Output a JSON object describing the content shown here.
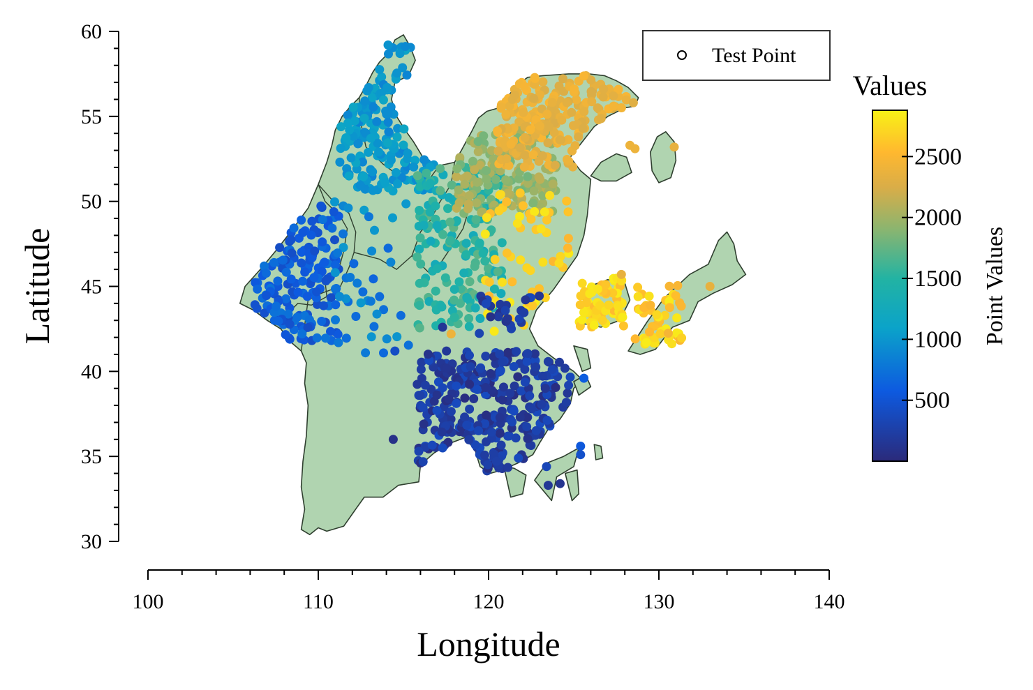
{
  "chart_data": {
    "type": "scatter",
    "xlabel": "Longitude",
    "ylabel": "Latitude",
    "xlim": [
      100,
      140
    ],
    "ylim": [
      30,
      60
    ],
    "xticks": [
      "100",
      "110",
      "120",
      "130",
      "140"
    ],
    "yticks": [
      "30",
      "35",
      "40",
      "45",
      "50",
      "55",
      "60"
    ],
    "grid": false,
    "legend": {
      "position": "top-right",
      "entries": [
        "Test Point"
      ]
    },
    "colorbar": {
      "title": "Values",
      "label": "Point Values",
      "range": [
        0,
        2880
      ],
      "ticks": [
        "500",
        "1000",
        "1500",
        "2000",
        "2500"
      ]
    },
    "map": {
      "land_color": "#b0d4b0",
      "outline_color": "#2f3f2f",
      "mainland": [
        [
          115.0,
          59.8
        ],
        [
          114.5,
          59.5
        ],
        [
          114.2,
          58.8
        ],
        [
          113.6,
          58.2
        ],
        [
          113.2,
          57.6
        ],
        [
          112.8,
          56.8
        ],
        [
          112.4,
          56.1
        ],
        [
          111.9,
          55.6
        ],
        [
          111.4,
          55.0
        ],
        [
          111.0,
          54.2
        ],
        [
          110.8,
          53.3
        ],
        [
          110.5,
          52.3
        ],
        [
          110.0,
          51.0
        ],
        [
          109.4,
          49.6
        ],
        [
          108.6,
          48.5
        ],
        [
          107.6,
          47.2
        ],
        [
          106.6,
          46.0
        ],
        [
          105.7,
          45.0
        ],
        [
          105.4,
          44.0
        ],
        [
          106.2,
          43.6
        ],
        [
          107.0,
          43.0
        ],
        [
          107.8,
          42.5
        ],
        [
          108.3,
          41.8
        ],
        [
          109.0,
          41.2
        ],
        [
          109.3,
          40.5
        ],
        [
          109.2,
          39.3
        ],
        [
          109.4,
          38.0
        ],
        [
          109.3,
          36.2
        ],
        [
          109.1,
          34.7
        ],
        [
          109.0,
          33.2
        ],
        [
          109.2,
          31.9
        ],
        [
          109.0,
          30.7
        ],
        [
          109.5,
          30.4
        ],
        [
          110.0,
          30.8
        ],
        [
          110.5,
          30.6
        ],
        [
          111.5,
          30.9
        ],
        [
          112.2,
          31.9
        ],
        [
          112.7,
          32.6
        ],
        [
          113.8,
          32.6
        ],
        [
          114.7,
          33.3
        ],
        [
          115.9,
          33.5
        ],
        [
          116.0,
          34.5
        ],
        [
          116.8,
          35.2
        ],
        [
          117.8,
          35.8
        ],
        [
          118.6,
          36.1
        ],
        [
          119.2,
          35.4
        ],
        [
          119.5,
          34.4
        ],
        [
          120.1,
          34.0
        ],
        [
          120.8,
          34.2
        ],
        [
          121.7,
          34.6
        ],
        [
          122.6,
          35.1
        ],
        [
          123.0,
          35.8
        ],
        [
          123.5,
          36.6
        ],
        [
          124.2,
          37.2
        ],
        [
          124.8,
          38.1
        ],
        [
          125.0,
          39.0
        ],
        [
          125.5,
          39.5
        ],
        [
          125.0,
          40.0
        ],
        [
          123.8,
          40.8
        ],
        [
          122.9,
          41.5
        ],
        [
          122.4,
          42.5
        ],
        [
          122.8,
          43.6
        ],
        [
          123.8,
          44.8
        ],
        [
          124.5,
          45.8
        ],
        [
          125.2,
          46.8
        ],
        [
          125.6,
          48.0
        ],
        [
          125.8,
          49.2
        ],
        [
          125.9,
          50.3
        ],
        [
          126.0,
          51.3
        ],
        [
          125.4,
          51.8
        ],
        [
          124.8,
          52.6
        ],
        [
          125.5,
          53.5
        ],
        [
          126.2,
          54.4
        ],
        [
          127.0,
          55.0
        ],
        [
          128.0,
          55.5
        ],
        [
          128.6,
          55.6
        ],
        [
          128.8,
          56.1
        ],
        [
          128.2,
          56.7
        ],
        [
          127.5,
          57.1
        ],
        [
          126.8,
          57.4
        ],
        [
          125.9,
          57.5
        ],
        [
          124.7,
          57.5
        ],
        [
          123.2,
          57.4
        ],
        [
          122.3,
          57.3
        ],
        [
          121.6,
          56.8
        ],
        [
          121.1,
          56.1
        ],
        [
          120.6,
          55.5
        ],
        [
          119.9,
          55.3
        ],
        [
          119.4,
          54.9
        ],
        [
          119.0,
          54.1
        ],
        [
          118.4,
          53.0
        ],
        [
          118.0,
          52.3
        ],
        [
          117.1,
          52.1
        ],
        [
          116.2,
          52.5
        ],
        [
          115.9,
          53.0
        ],
        [
          115.6,
          53.5
        ],
        [
          115.1,
          54.2
        ],
        [
          114.6,
          55.0
        ],
        [
          114.3,
          56.0
        ],
        [
          114.5,
          57.0
        ],
        [
          115.3,
          57.4
        ],
        [
          115.7,
          58.3
        ],
        [
          115.4,
          59.1
        ],
        [
          115.0,
          59.8
        ]
      ],
      "islands": [
        [
          [
            126.0,
            51.5
          ],
          [
            126.6,
            52.3
          ],
          [
            127.5,
            52.8
          ],
          [
            128.1,
            52.6
          ],
          [
            128.4,
            51.7
          ],
          [
            127.5,
            51.2
          ],
          [
            126.6,
            51.2
          ],
          [
            126.0,
            51.5
          ]
        ],
        [
          [
            129.5,
            52.9
          ],
          [
            129.9,
            53.8
          ],
          [
            130.4,
            54.1
          ],
          [
            130.9,
            53.5
          ],
          [
            131.0,
            52.4
          ],
          [
            130.7,
            51.4
          ],
          [
            130.0,
            51.1
          ],
          [
            129.6,
            51.8
          ],
          [
            129.5,
            52.9
          ]
        ],
        [
          [
            125.4,
            43.8
          ],
          [
            125.9,
            45.0
          ],
          [
            127.0,
            45.4
          ],
          [
            128.0,
            45.2
          ],
          [
            128.3,
            44.2
          ],
          [
            127.7,
            43.0
          ],
          [
            126.6,
            42.6
          ],
          [
            125.6,
            42.8
          ],
          [
            125.4,
            43.8
          ]
        ],
        [
          [
            128.2,
            41.2
          ],
          [
            129.3,
            42.9
          ],
          [
            130.3,
            44.3
          ],
          [
            131.8,
            45.7
          ],
          [
            132.9,
            46.3
          ],
          [
            133.5,
            47.7
          ],
          [
            134.0,
            48.2
          ],
          [
            134.4,
            47.5
          ],
          [
            134.6,
            46.5
          ],
          [
            135.1,
            45.7
          ],
          [
            134.3,
            45.1
          ],
          [
            133.2,
            44.6
          ],
          [
            132.3,
            44.1
          ],
          [
            131.8,
            43.0
          ],
          [
            130.8,
            42.6
          ],
          [
            129.8,
            41.3
          ],
          [
            128.9,
            41.0
          ],
          [
            128.2,
            41.2
          ]
        ],
        [
          [
            122.7,
            33.6
          ],
          [
            123.4,
            34.6
          ],
          [
            124.4,
            35.0
          ],
          [
            125.3,
            35.5
          ],
          [
            125.0,
            34.4
          ],
          [
            124.0,
            33.8
          ],
          [
            123.7,
            32.4
          ],
          [
            122.7,
            33.6
          ]
        ],
        [
          [
            126.2,
            35.7
          ],
          [
            126.6,
            35.6
          ],
          [
            126.7,
            34.9
          ],
          [
            126.3,
            34.8
          ],
          [
            126.2,
            35.7
          ]
        ],
        [
          [
            125.0,
            39.4
          ],
          [
            125.7,
            39.8
          ],
          [
            126.0,
            39.1
          ],
          [
            125.3,
            38.6
          ],
          [
            125.0,
            39.4
          ]
        ],
        [
          [
            120.9,
            34.4
          ],
          [
            121.5,
            34.3
          ],
          [
            122.2,
            33.9
          ],
          [
            122.0,
            32.8
          ],
          [
            121.3,
            32.6
          ],
          [
            120.9,
            34.4
          ]
        ],
        [
          [
            124.5,
            34.0
          ],
          [
            125.2,
            34.2
          ],
          [
            125.3,
            32.8
          ],
          [
            124.9,
            32.4
          ],
          [
            124.5,
            34.0
          ]
        ],
        [
          [
            125.0,
            41.5
          ],
          [
            125.8,
            41.3
          ],
          [
            126.0,
            40.2
          ],
          [
            125.5,
            40.0
          ],
          [
            125.0,
            41.5
          ]
        ]
      ],
      "borders": [
        [
          [
            110.0,
            51.0
          ],
          [
            110.4,
            50.0
          ],
          [
            111.3,
            49.1
          ],
          [
            111.7,
            48.4
          ],
          [
            111.5,
            47.1
          ],
          [
            111.2,
            46.0
          ],
          [
            110.4,
            45.3
          ],
          [
            110.5,
            44.4
          ],
          [
            109.6,
            43.9
          ],
          [
            108.8,
            44.0
          ],
          [
            108.2,
            43.4
          ],
          [
            107.8,
            42.5
          ]
        ],
        [
          [
            110.0,
            51.0
          ],
          [
            110.8,
            50.1
          ],
          [
            111.8,
            49.3
          ],
          [
            112.2,
            48.2
          ],
          [
            112.1,
            47.0
          ],
          [
            111.8,
            46.1
          ],
          [
            111.3,
            45.0
          ],
          [
            110.2,
            44.6
          ],
          [
            109.4,
            44.2
          ],
          [
            109.0,
            41.2
          ]
        ],
        [
          [
            112.4,
            56.1
          ],
          [
            112.5,
            54.6
          ],
          [
            112.8,
            53.2
          ],
          [
            113.8,
            52.2
          ],
          [
            115.0,
            51.3
          ],
          [
            116.3,
            51.0
          ],
          [
            117.1,
            52.1
          ]
        ],
        [
          [
            112.1,
            47.0
          ],
          [
            113.6,
            46.6
          ],
          [
            114.6,
            46.0
          ],
          [
            115.5,
            46.8
          ],
          [
            116.0,
            48.2
          ],
          [
            116.6,
            48.9
          ],
          [
            117.1,
            49.9
          ],
          [
            117.8,
            51.0
          ],
          [
            118.0,
            52.3
          ]
        ],
        [
          [
            115.5,
            46.8
          ],
          [
            116.6,
            45.7
          ],
          [
            117.2,
            46.4
          ],
          [
            118.0,
            47.6
          ],
          [
            118.5,
            48.4
          ],
          [
            118.8,
            49.4
          ]
        ]
      ]
    },
    "series": [
      {
        "name": "Test Point",
        "clusters": [
          {
            "lon": [
              106.2,
              111.2
            ],
            "lat": [
              41.8,
              49.8
            ],
            "count": 170,
            "value": [
              420,
              760
            ]
          },
          {
            "lon": [
              111.2,
              116.8
            ],
            "lat": [
              50.6,
              59.4
            ],
            "count": 170,
            "value": [
              860,
              1160
            ]
          },
          {
            "lon": [
              110.5,
              115.5
            ],
            "lat": [
              41.0,
              50.5
            ],
            "count": 40,
            "value": [
              650,
              1050
            ]
          },
          {
            "lon": [
              115.8,
              120.8
            ],
            "lat": [
              42.5,
              52.0
            ],
            "count": 180,
            "value": [
              1250,
              1750
            ]
          },
          {
            "lon": [
              118.0,
              124.0
            ],
            "lat": [
              49.2,
              54.2
            ],
            "count": 160,
            "value": [
              1800,
              2150
            ]
          },
          {
            "lon": [
              120.5,
              128.2
            ],
            "lat": [
              52.0,
              57.4
            ],
            "count": 220,
            "value": [
              2250,
              2500
            ]
          },
          {
            "lon": [
              119.8,
              124.8
            ],
            "lat": [
              42.3,
              50.5
            ],
            "count": 60,
            "value": [
              2500,
              2850
            ]
          },
          {
            "lon": [
              125.3,
              128.0
            ],
            "lat": [
              42.6,
              45.5
            ],
            "count": 75,
            "value": [
              2550,
              2850
            ]
          },
          {
            "lon": [
              128.6,
              131.5
            ],
            "lat": [
              41.6,
              45.2
            ],
            "count": 55,
            "value": [
              2450,
              2850
            ]
          },
          {
            "lon": [
              115.8,
              124.8
            ],
            "lat": [
              34.0,
              41.2
            ],
            "count": 320,
            "value": [
              40,
              400
            ]
          },
          {
            "lon": [
              119.4,
              124.4
            ],
            "lat": [
              42.0,
              44.5
            ],
            "count": 25,
            "value": [
              50,
              350
            ]
          }
        ],
        "extras": [
          {
            "lon": 114.4,
            "lat": 36.0,
            "value": 80
          },
          {
            "lon": 114.5,
            "lat": 41.2,
            "value": 420
          },
          {
            "lon": 125.4,
            "lat": 35.6,
            "value": 550
          },
          {
            "lon": 125.4,
            "lat": 35.1,
            "value": 450
          },
          {
            "lon": 125.6,
            "lat": 39.6,
            "value": 600
          },
          {
            "lon": 123.4,
            "lat": 34.4,
            "value": 350
          },
          {
            "lon": 123.5,
            "lat": 33.3,
            "value": 150
          },
          {
            "lon": 124.2,
            "lat": 33.4,
            "value": 120
          },
          {
            "lon": 128.3,
            "lat": 53.3,
            "value": 2400
          },
          {
            "lon": 128.6,
            "lat": 53.1,
            "value": 2400
          },
          {
            "lon": 130.9,
            "lat": 53.2,
            "value": 2350
          },
          {
            "lon": 133.0,
            "lat": 45.0,
            "value": 2350
          },
          {
            "lon": 127.8,
            "lat": 45.7,
            "value": 2350
          },
          {
            "lon": 126.4,
            "lat": 55.5,
            "value": 2300
          },
          {
            "lon": 128.5,
            "lat": 55.8,
            "value": 2300
          },
          {
            "lon": 115.9,
            "lat": 35.3,
            "value": 300
          },
          {
            "lon": 117.3,
            "lat": 35.5,
            "value": 380
          },
          {
            "lon": 117.3,
            "lat": 42.6,
            "value": 150
          },
          {
            "lon": 117.8,
            "lat": 42.2,
            "value": 2400
          },
          {
            "lon": 113.6,
            "lat": 44.4,
            "value": 700
          },
          {
            "lon": 113.3,
            "lat": 48.3,
            "value": 1000
          },
          {
            "lon": 114.1,
            "lat": 59.2,
            "value": 980
          },
          {
            "lon": 114.8,
            "lat": 58.7,
            "value": 1000
          }
        ]
      }
    ]
  }
}
